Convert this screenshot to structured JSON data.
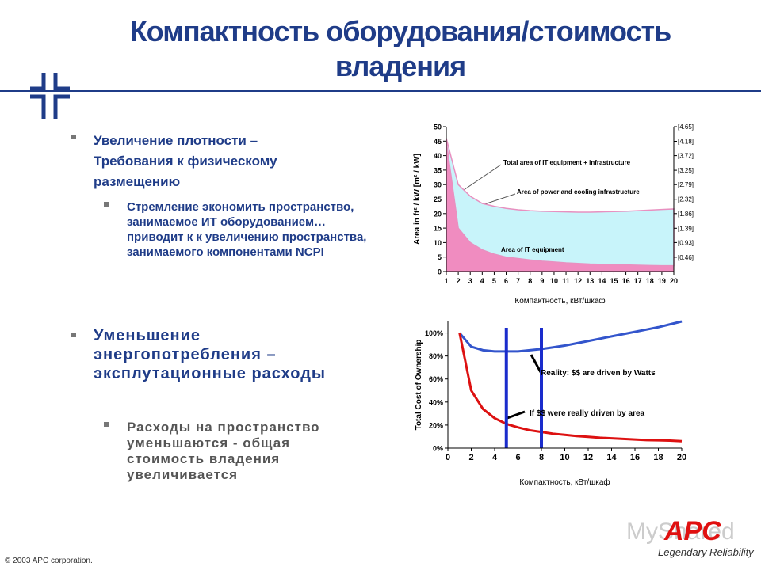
{
  "header": {
    "title": "Компактность оборудования/стоимость владения"
  },
  "bullets": [
    {
      "text": "Увеличение плотности – Требования к физическому размещению",
      "sub": "Стремление экономить пространство, занимаемое ИТ оборудованием…приводит к к увеличению пространства, занимаемого компонентами NCPI"
    },
    {
      "text": "Уменьшение энергопотребления – эксплутационные расходы",
      "sub": "Расходы на пространство уменьшаются - общая стоимость владения увеличивается"
    }
  ],
  "footer": {
    "copyright": "© 2003 APC corporation.",
    "watermark": "MyShared",
    "logo": "APC",
    "tagline": "Legendary Reliability"
  },
  "chart_data": [
    {
      "type": "area",
      "stacked": true,
      "y_label": "Area in ft² / kW  [m² / kW]",
      "x_label": "Компактность, кВт/шкаф",
      "x": [
        1,
        2,
        3,
        4,
        5,
        6,
        7,
        8,
        9,
        10,
        11,
        12,
        13,
        14,
        15,
        16,
        17,
        18,
        19,
        20
      ],
      "xlim": [
        1,
        20
      ],
      "xticks": [
        1,
        2,
        3,
        4,
        5,
        6,
        7,
        8,
        9,
        10,
        11,
        12,
        13,
        14,
        15,
        16,
        17,
        18,
        19,
        20
      ],
      "ylim": [
        0,
        50
      ],
      "yticks": [
        0,
        5,
        10,
        15,
        20,
        25,
        30,
        35,
        40,
        45,
        50
      ],
      "y2lim": [
        0,
        4.65
      ],
      "y2ticks": [
        {
          "value": 0.46,
          "label": "[0.46]"
        },
        {
          "value": 0.93,
          "label": "[0.93]"
        },
        {
          "value": 1.39,
          "label": "[1.39]"
        },
        {
          "value": 1.86,
          "label": "[1.86]"
        },
        {
          "value": 2.32,
          "label": "[2.32]"
        },
        {
          "value": 2.79,
          "label": "[2.79]"
        },
        {
          "value": 3.25,
          "label": "[3.25]"
        },
        {
          "value": 3.72,
          "label": "[3.72]"
        },
        {
          "value": 4.18,
          "label": "[4.18]"
        },
        {
          "value": 4.65,
          "label": "[4.65]"
        }
      ],
      "series": [
        {
          "color": "#f08cc0",
          "values": [
            45,
            15,
            10,
            7.5,
            6,
            5,
            4.5,
            4,
            3.6,
            3.3,
            3,
            2.8,
            2.6,
            2.5,
            2.4,
            2.3,
            2.2,
            2.1,
            2,
            2
          ]
        },
        {
          "color": "#c8f4fa",
          "values": [
            1,
            15,
            16,
            16,
            16.5,
            16.8,
            16.8,
            17,
            17.2,
            17.4,
            17.6,
            17.7,
            17.9,
            18.1,
            18.3,
            18.5,
            18.8,
            19.1,
            19.4,
            19.6
          ]
        }
      ],
      "annotations": [
        "Total area of IT equipment + infrastructure",
        "Area of power and cooling infrastructure",
        "Area of IT equipment"
      ]
    },
    {
      "type": "line",
      "y_label": "Total Cost of Ownership",
      "x_label": "Компактность, кВт/шкаф",
      "x": [
        1,
        2,
        3,
        4,
        5,
        6,
        7,
        8,
        9,
        10,
        11,
        12,
        13,
        14,
        15,
        16,
        17,
        18,
        19,
        20
      ],
      "xlim": [
        0,
        20
      ],
      "xticks": [
        0,
        2,
        4,
        6,
        8,
        10,
        12,
        14,
        16,
        18,
        20
      ],
      "ylim": [
        0,
        110
      ],
      "yticks": [
        {
          "value": 0,
          "label": "0%"
        },
        {
          "value": 20,
          "label": "20%"
        },
        {
          "value": 40,
          "label": "40%"
        },
        {
          "value": 60,
          "label": "60%"
        },
        {
          "value": 80,
          "label": "80%"
        },
        {
          "value": 100,
          "label": "100%"
        }
      ],
      "series": [
        {
          "color": "#3355cc",
          "values": [
            100,
            88,
            85,
            84,
            84,
            84,
            85,
            86,
            87.5,
            89,
            91,
            93,
            95,
            97,
            99,
            101,
            103,
            105,
            107.5,
            110
          ]
        },
        {
          "color": "#dd1111",
          "values": [
            100,
            50,
            34,
            26,
            21,
            18,
            15.5,
            14,
            12.5,
            11.5,
            10.5,
            9.8,
            9,
            8.5,
            8,
            7.5,
            7,
            6.8,
            6.5,
            6
          ]
        }
      ],
      "vlines": [
        5,
        8
      ],
      "vline_color": "#1a2ccc",
      "annotations": [
        "Reality: $$ are driven by Watts",
        "If $$ were really driven by area"
      ]
    }
  ]
}
